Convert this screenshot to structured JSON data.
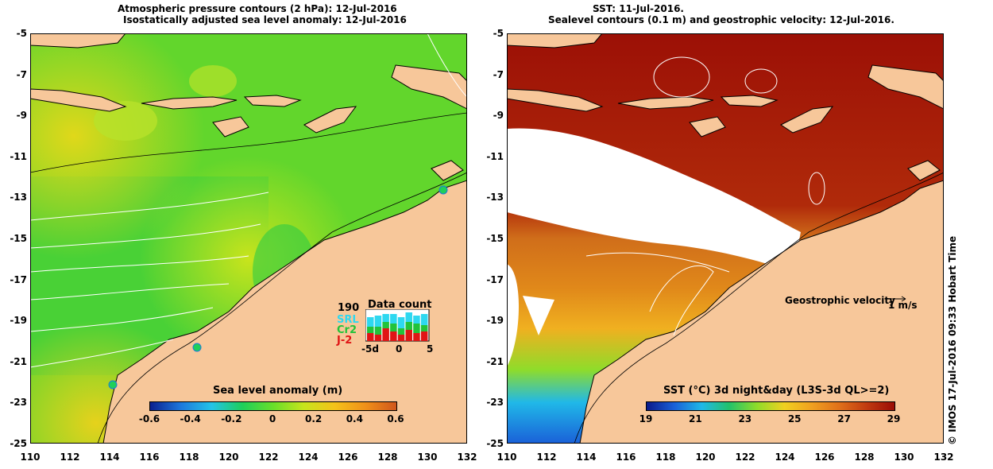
{
  "left_panel": {
    "title_line1": "Atmospheric pressure contours (2 hPa): 12-Jul-2016",
    "title_line2": "Isostatically adjusted sea level anomaly: 12-Jul-2016",
    "colorbar": {
      "title": "Sea level anomaly (m)",
      "ticks": [
        "-0.6",
        "-0.4",
        "-0.2",
        "0",
        "0.2",
        "0.4",
        "0.6"
      ],
      "colors": [
        "#0a1f8f",
        "#1e78dc",
        "#23c4e8",
        "#1fcf5a",
        "#69df2a",
        "#c8e41c",
        "#f5c21a",
        "#f0901a",
        "#d0561c"
      ]
    },
    "data_count": {
      "title": "Data count",
      "total": "190",
      "missions": [
        {
          "name": "SRL",
          "color": "#2ed8f0"
        },
        {
          "name": "Cr2",
          "color": "#22c33a"
        },
        {
          "name": "J-2",
          "color": "#e01515"
        }
      ],
      "axis_labels": [
        "-5d",
        "0",
        "5"
      ]
    }
  },
  "right_panel": {
    "title_line1": "SST: 11-Jul-2016.",
    "title_line2": "Sealevel contours (0.1 m) and geostrophic velocity: 12-Jul-2016.",
    "colorbar": {
      "title": "SST (°C) 3d night&day (L3S-3d QL>=2)",
      "ticks": [
        "19",
        "21",
        "23",
        "25",
        "27",
        "29"
      ],
      "colors": [
        "#0a1a8a",
        "#1a60d8",
        "#20b8e8",
        "#22c26a",
        "#8fdc2a",
        "#f0d020",
        "#f0a020",
        "#e0701a",
        "#c03a10",
        "#9a0c06"
      ]
    },
    "velocity_key": {
      "label": "Geostrophic velocity",
      "unit": "1 m/s"
    }
  },
  "axes": {
    "x_ticks": [
      "110",
      "112",
      "114",
      "116",
      "118",
      "120",
      "122",
      "124",
      "126",
      "128",
      "130",
      "132"
    ],
    "y_ticks": [
      "-5",
      "-7",
      "-9",
      "-11",
      "-13",
      "-15",
      "-17",
      "-19",
      "-21",
      "-23",
      "-25"
    ]
  },
  "credit": "© IMOS 17-Jul-2016 09:33 Hobart Time",
  "colors": {
    "land": "#f7c79a",
    "sst_warm": "#9c1006",
    "sla_green": "#4fd12e"
  }
}
